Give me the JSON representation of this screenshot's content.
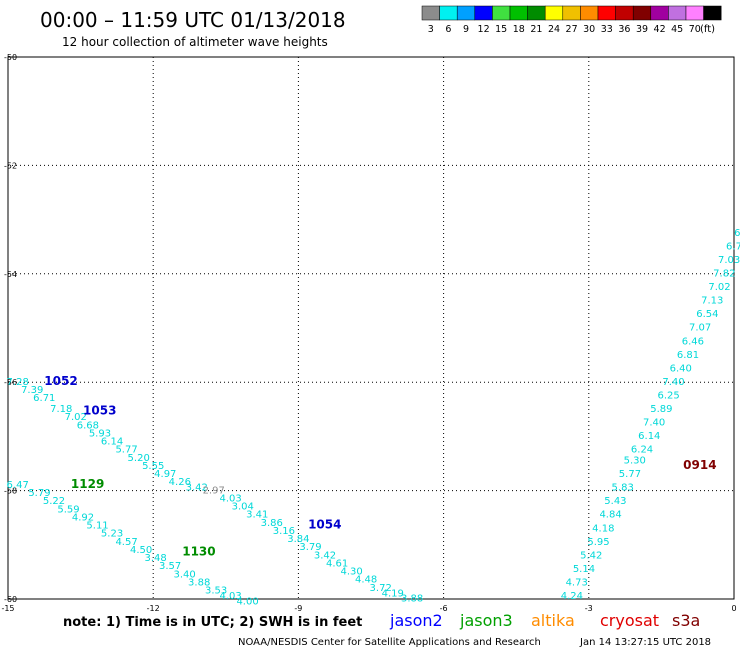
{
  "header": {
    "title": "00:00 – 11:59 UTC 01/13/2018",
    "subtitle": "12 hour collection of altimeter wave heights"
  },
  "colorbar": {
    "units": "(ft)",
    "bins": [
      {
        "color": "#8c8c8c",
        "label": "3"
      },
      {
        "color": "#00f0f0",
        "label": "6"
      },
      {
        "color": "#00a0ff",
        "label": "9"
      },
      {
        "color": "#0000ff",
        "label": "12"
      },
      {
        "color": "#40e040",
        "label": "15"
      },
      {
        "color": "#00c000",
        "label": "18"
      },
      {
        "color": "#008c00",
        "label": "21"
      },
      {
        "color": "#ffff00",
        "label": "24"
      },
      {
        "color": "#f0c000",
        "label": "27"
      },
      {
        "color": "#ff8c00",
        "label": "30"
      },
      {
        "color": "#ff0000",
        "label": "33"
      },
      {
        "color": "#c00000",
        "label": "36"
      },
      {
        "color": "#800000",
        "label": "39"
      },
      {
        "color": "#a000a0",
        "label": "42"
      },
      {
        "color": "#c070e0",
        "label": "45"
      },
      {
        "color": "#ff80ff",
        "label": "70"
      },
      {
        "color": "#000000",
        "label": ""
      }
    ]
  },
  "map": {
    "lon_range": [
      -15,
      0
    ],
    "lat_range": [
      -60,
      -50
    ],
    "lon_ticks": [
      -15,
      -12,
      -9,
      -6,
      -3,
      0
    ],
    "lon_tick_labels": [
      "-15",
      "-12",
      "-9",
      "-6",
      "-3",
      "0"
    ],
    "lat_ticks": [
      -50,
      -52,
      -54,
      -56,
      -58,
      -60
    ],
    "lat_tick_labels": [
      "-50",
      "-52",
      "-54",
      "-56",
      "-58",
      "-60"
    ],
    "grid": "dotted"
  },
  "tracks": [
    {
      "satellite": "jason2",
      "label": "1052",
      "label_color": "#0000cc",
      "label_pos": [
        -14.25,
        -56.05
      ],
      "color": "#00d8d8",
      "points": [
        {
          "lon": -14.8,
          "lat": -56.05,
          "v": "7.28"
        },
        {
          "lon": -14.5,
          "lat": -56.2,
          "v": "7.39"
        },
        {
          "lon": -14.25,
          "lat": -56.35,
          "v": "6.71"
        },
        {
          "lon": -13.9,
          "lat": -56.55,
          "v": "7.18"
        },
        {
          "lon": -13.6,
          "lat": -56.7,
          "v": "7.02"
        },
        {
          "lon": -13.35,
          "lat": -56.85,
          "v": "6.68"
        },
        {
          "lon": -13.1,
          "lat": -57.0,
          "v": "5.93"
        },
        {
          "lon": -12.85,
          "lat": -57.15,
          "v": "6.14"
        },
        {
          "lon": -12.55,
          "lat": -57.3,
          "v": "5.77"
        },
        {
          "lon": -12.3,
          "lat": -57.45,
          "v": "5.20"
        },
        {
          "lon": -12.0,
          "lat": -57.6,
          "v": "5.55"
        },
        {
          "lon": -11.75,
          "lat": -57.75,
          "v": "4.97"
        },
        {
          "lon": -11.45,
          "lat": -57.9,
          "v": "4.26"
        },
        {
          "lon": -11.1,
          "lat": -58.0,
          "v": "3.42"
        }
      ]
    },
    {
      "satellite": "jason2",
      "label": "1053",
      "label_color": "#0000cc",
      "label_pos": [
        -13.45,
        -56.6
      ],
      "color": "#00d8d8",
      "points": [
        {
          "lon": -10.75,
          "lat": -58.05,
          "v": "2.97",
          "color": "#8c8c8c"
        },
        {
          "lon": -10.4,
          "lat": -58.2,
          "v": "4.03"
        },
        {
          "lon": -10.15,
          "lat": -58.35,
          "v": "3.04"
        },
        {
          "lon": -9.85,
          "lat": -58.5,
          "v": "3.41"
        },
        {
          "lon": -9.55,
          "lat": -58.65,
          "v": "3.86"
        },
        {
          "lon": -9.3,
          "lat": -58.8,
          "v": "3.16"
        },
        {
          "lon": -9.0,
          "lat": -58.95,
          "v": "3.84"
        },
        {
          "lon": -8.75,
          "lat": -59.1,
          "v": "3.79"
        },
        {
          "lon": -8.45,
          "lat": -59.25,
          "v": "3.42"
        },
        {
          "lon": -8.2,
          "lat": -59.4,
          "v": "4.61"
        },
        {
          "lon": -7.9,
          "lat": -59.55,
          "v": "4.30"
        },
        {
          "lon": -7.6,
          "lat": -59.7,
          "v": "4.48"
        },
        {
          "lon": -7.3,
          "lat": -59.85,
          "v": "3.72"
        },
        {
          "lon": -7.05,
          "lat": -59.95,
          "v": "4.19"
        },
        {
          "lon": -6.65,
          "lat": -60.05,
          "v": "3.88"
        }
      ]
    },
    {
      "satellite": "jason2",
      "label": "1054",
      "label_color": "#0000cc",
      "label_pos": [
        -8.8,
        -58.7
      ],
      "color": "#00d8d8",
      "points": []
    },
    {
      "satellite": "jason3",
      "label": "1129",
      "label_color": "#008c00",
      "label_pos": [
        -13.7,
        -57.95
      ],
      "color": "#00d8d8",
      "points": [
        {
          "lon": -14.8,
          "lat": -57.95,
          "v": "6.47"
        },
        {
          "lon": -14.35,
          "lat": -58.1,
          "v": "5.79"
        },
        {
          "lon": -14.05,
          "lat": -58.25,
          "v": "5.22"
        },
        {
          "lon": -13.75,
          "lat": -58.4,
          "v": "5.59"
        },
        {
          "lon": -13.45,
          "lat": -58.55,
          "v": "4.92"
        },
        {
          "lon": -13.15,
          "lat": -58.7,
          "v": "5.11"
        },
        {
          "lon": -12.85,
          "lat": -58.85,
          "v": "5.23"
        },
        {
          "lon": -12.55,
          "lat": -59.0,
          "v": "4.57"
        },
        {
          "lon": -12.25,
          "lat": -59.15,
          "v": "4.50"
        },
        {
          "lon": -11.95,
          "lat": -59.3,
          "v": "3.48"
        },
        {
          "lon": -11.65,
          "lat": -59.45,
          "v": "3.57"
        },
        {
          "lon": -11.35,
          "lat": -59.6,
          "v": "3.40"
        },
        {
          "lon": -11.05,
          "lat": -59.75,
          "v": "3.88"
        },
        {
          "lon": -10.7,
          "lat": -59.9,
          "v": "3.53"
        },
        {
          "lon": -10.4,
          "lat": -60.0,
          "v": "4.03"
        },
        {
          "lon": -10.05,
          "lat": -60.1,
          "v": "4.00"
        }
      ]
    },
    {
      "satellite": "jason3",
      "label": "1130",
      "label_color": "#008c00",
      "label_pos": [
        -11.4,
        -59.2
      ],
      "color": "#00d8d8",
      "points": []
    },
    {
      "satellite": "cryosat",
      "label": "0914",
      "label_color": "#800000",
      "label_pos": [
        -1.05,
        -57.6
      ],
      "color": "#00d8d8",
      "points": [
        {
          "lon": -3.35,
          "lat": -60.0,
          "v": "4.24"
        },
        {
          "lon": -3.25,
          "lat": -59.75,
          "v": "4.73"
        },
        {
          "lon": -3.1,
          "lat": -59.5,
          "v": "5.14"
        },
        {
          "lon": -2.95,
          "lat": -59.25,
          "v": "5.42"
        },
        {
          "lon": -2.8,
          "lat": -59.0,
          "v": "5.95"
        },
        {
          "lon": -2.7,
          "lat": -58.75,
          "v": "4.18"
        },
        {
          "lon": -2.55,
          "lat": -58.5,
          "v": "4.84"
        },
        {
          "lon": -2.45,
          "lat": -58.25,
          "v": "5.43"
        },
        {
          "lon": -2.3,
          "lat": -58.0,
          "v": "5.83"
        },
        {
          "lon": -2.15,
          "lat": -57.75,
          "v": "5.77"
        },
        {
          "lon": -2.05,
          "lat": -57.5,
          "v": "5.30"
        },
        {
          "lon": -1.9,
          "lat": -57.3,
          "v": "6.24"
        },
        {
          "lon": -1.75,
          "lat": -57.05,
          "v": "6.14"
        },
        {
          "lon": -1.65,
          "lat": -56.8,
          "v": "7.40"
        },
        {
          "lon": -1.5,
          "lat": -56.55,
          "v": "5.89"
        },
        {
          "lon": -1.35,
          "lat": -56.3,
          "v": "6.25"
        },
        {
          "lon": -1.25,
          "lat": -56.05,
          "v": "7.40"
        },
        {
          "lon": -1.1,
          "lat": -55.8,
          "v": "6.40"
        },
        {
          "lon": -0.95,
          "lat": -55.55,
          "v": "6.81"
        },
        {
          "lon": -0.85,
          "lat": -55.3,
          "v": "6.46"
        },
        {
          "lon": -0.7,
          "lat": -55.05,
          "v": "7.07"
        },
        {
          "lon": -0.55,
          "lat": -54.8,
          "v": "6.54"
        },
        {
          "lon": -0.45,
          "lat": -54.55,
          "v": "7.13"
        },
        {
          "lon": -0.3,
          "lat": -54.3,
          "v": "7.02"
        },
        {
          "lon": -0.2,
          "lat": -54.05,
          "v": "7.82"
        },
        {
          "lon": -0.1,
          "lat": -53.8,
          "v": "7.03"
        },
        {
          "lon": 0.0,
          "lat": -53.55,
          "v": "6.7"
        },
        {
          "lon": 0.1,
          "lat": -53.3,
          "v": "6."
        }
      ]
    }
  ],
  "legend": {
    "note": "note: 1) Time is in UTC; 2) SWH is in feet",
    "satellites": [
      {
        "name": "jason2",
        "color": "#0000ff"
      },
      {
        "name": "jason3",
        "color": "#00a000"
      },
      {
        "name": "altika",
        "color": "#ff8c00"
      },
      {
        "name": "cryosat",
        "color": "#e00000"
      },
      {
        "name": "s3a",
        "color": "#800000"
      }
    ]
  },
  "footer": {
    "credit": "NOAA/NESDIS Center for Satellite Applications and Research",
    "timestamp": "Jan 14 13:27:15 UTC 2018"
  }
}
